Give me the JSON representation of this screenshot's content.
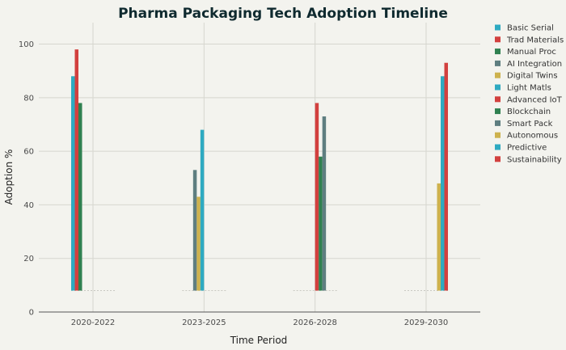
{
  "chart_data": {
    "type": "bar",
    "title": "Pharma Packaging Tech Adoption Timeline",
    "xlabel": "Time Period",
    "ylabel": "Adoption %",
    "categories": [
      "2020-2022",
      "2023-2025",
      "2026-2028",
      "2029-2030"
    ],
    "ylim": [
      0,
      108
    ],
    "yticks": [
      0,
      20,
      40,
      60,
      80,
      100
    ],
    "baseline": 8,
    "grid": true,
    "legend_position": "right",
    "series": [
      {
        "name": "Basic Serial",
        "color": "#2eaac1",
        "values": [
          88,
          null,
          null,
          null
        ]
      },
      {
        "name": "Trad Materials",
        "color": "#d2403e",
        "values": [
          98,
          null,
          null,
          null
        ]
      },
      {
        "name": "Manual Proc",
        "color": "#2f8050",
        "values": [
          78,
          null,
          null,
          null
        ]
      },
      {
        "name": "AI Integration",
        "color": "#5e7e80",
        "values": [
          null,
          53,
          null,
          null
        ]
      },
      {
        "name": "Digital Twins",
        "color": "#cdb24e",
        "values": [
          null,
          43,
          null,
          null
        ]
      },
      {
        "name": "Light Matls",
        "color": "#2eaac1",
        "values": [
          null,
          68,
          null,
          null
        ]
      },
      {
        "name": "Advanced IoT",
        "color": "#d2403e",
        "values": [
          null,
          null,
          78,
          null
        ]
      },
      {
        "name": "Blockchain",
        "color": "#2f8050",
        "values": [
          null,
          null,
          58,
          null
        ]
      },
      {
        "name": "Smart Pack",
        "color": "#5e7e80",
        "values": [
          null,
          null,
          73,
          null
        ]
      },
      {
        "name": "Autonomous",
        "color": "#cdb24e",
        "values": [
          null,
          null,
          null,
          48
        ]
      },
      {
        "name": "Predictive",
        "color": "#2eaac1",
        "values": [
          null,
          null,
          null,
          88
        ]
      },
      {
        "name": "Sustainability",
        "color": "#d2403e",
        "values": [
          null,
          null,
          null,
          93
        ]
      }
    ]
  }
}
